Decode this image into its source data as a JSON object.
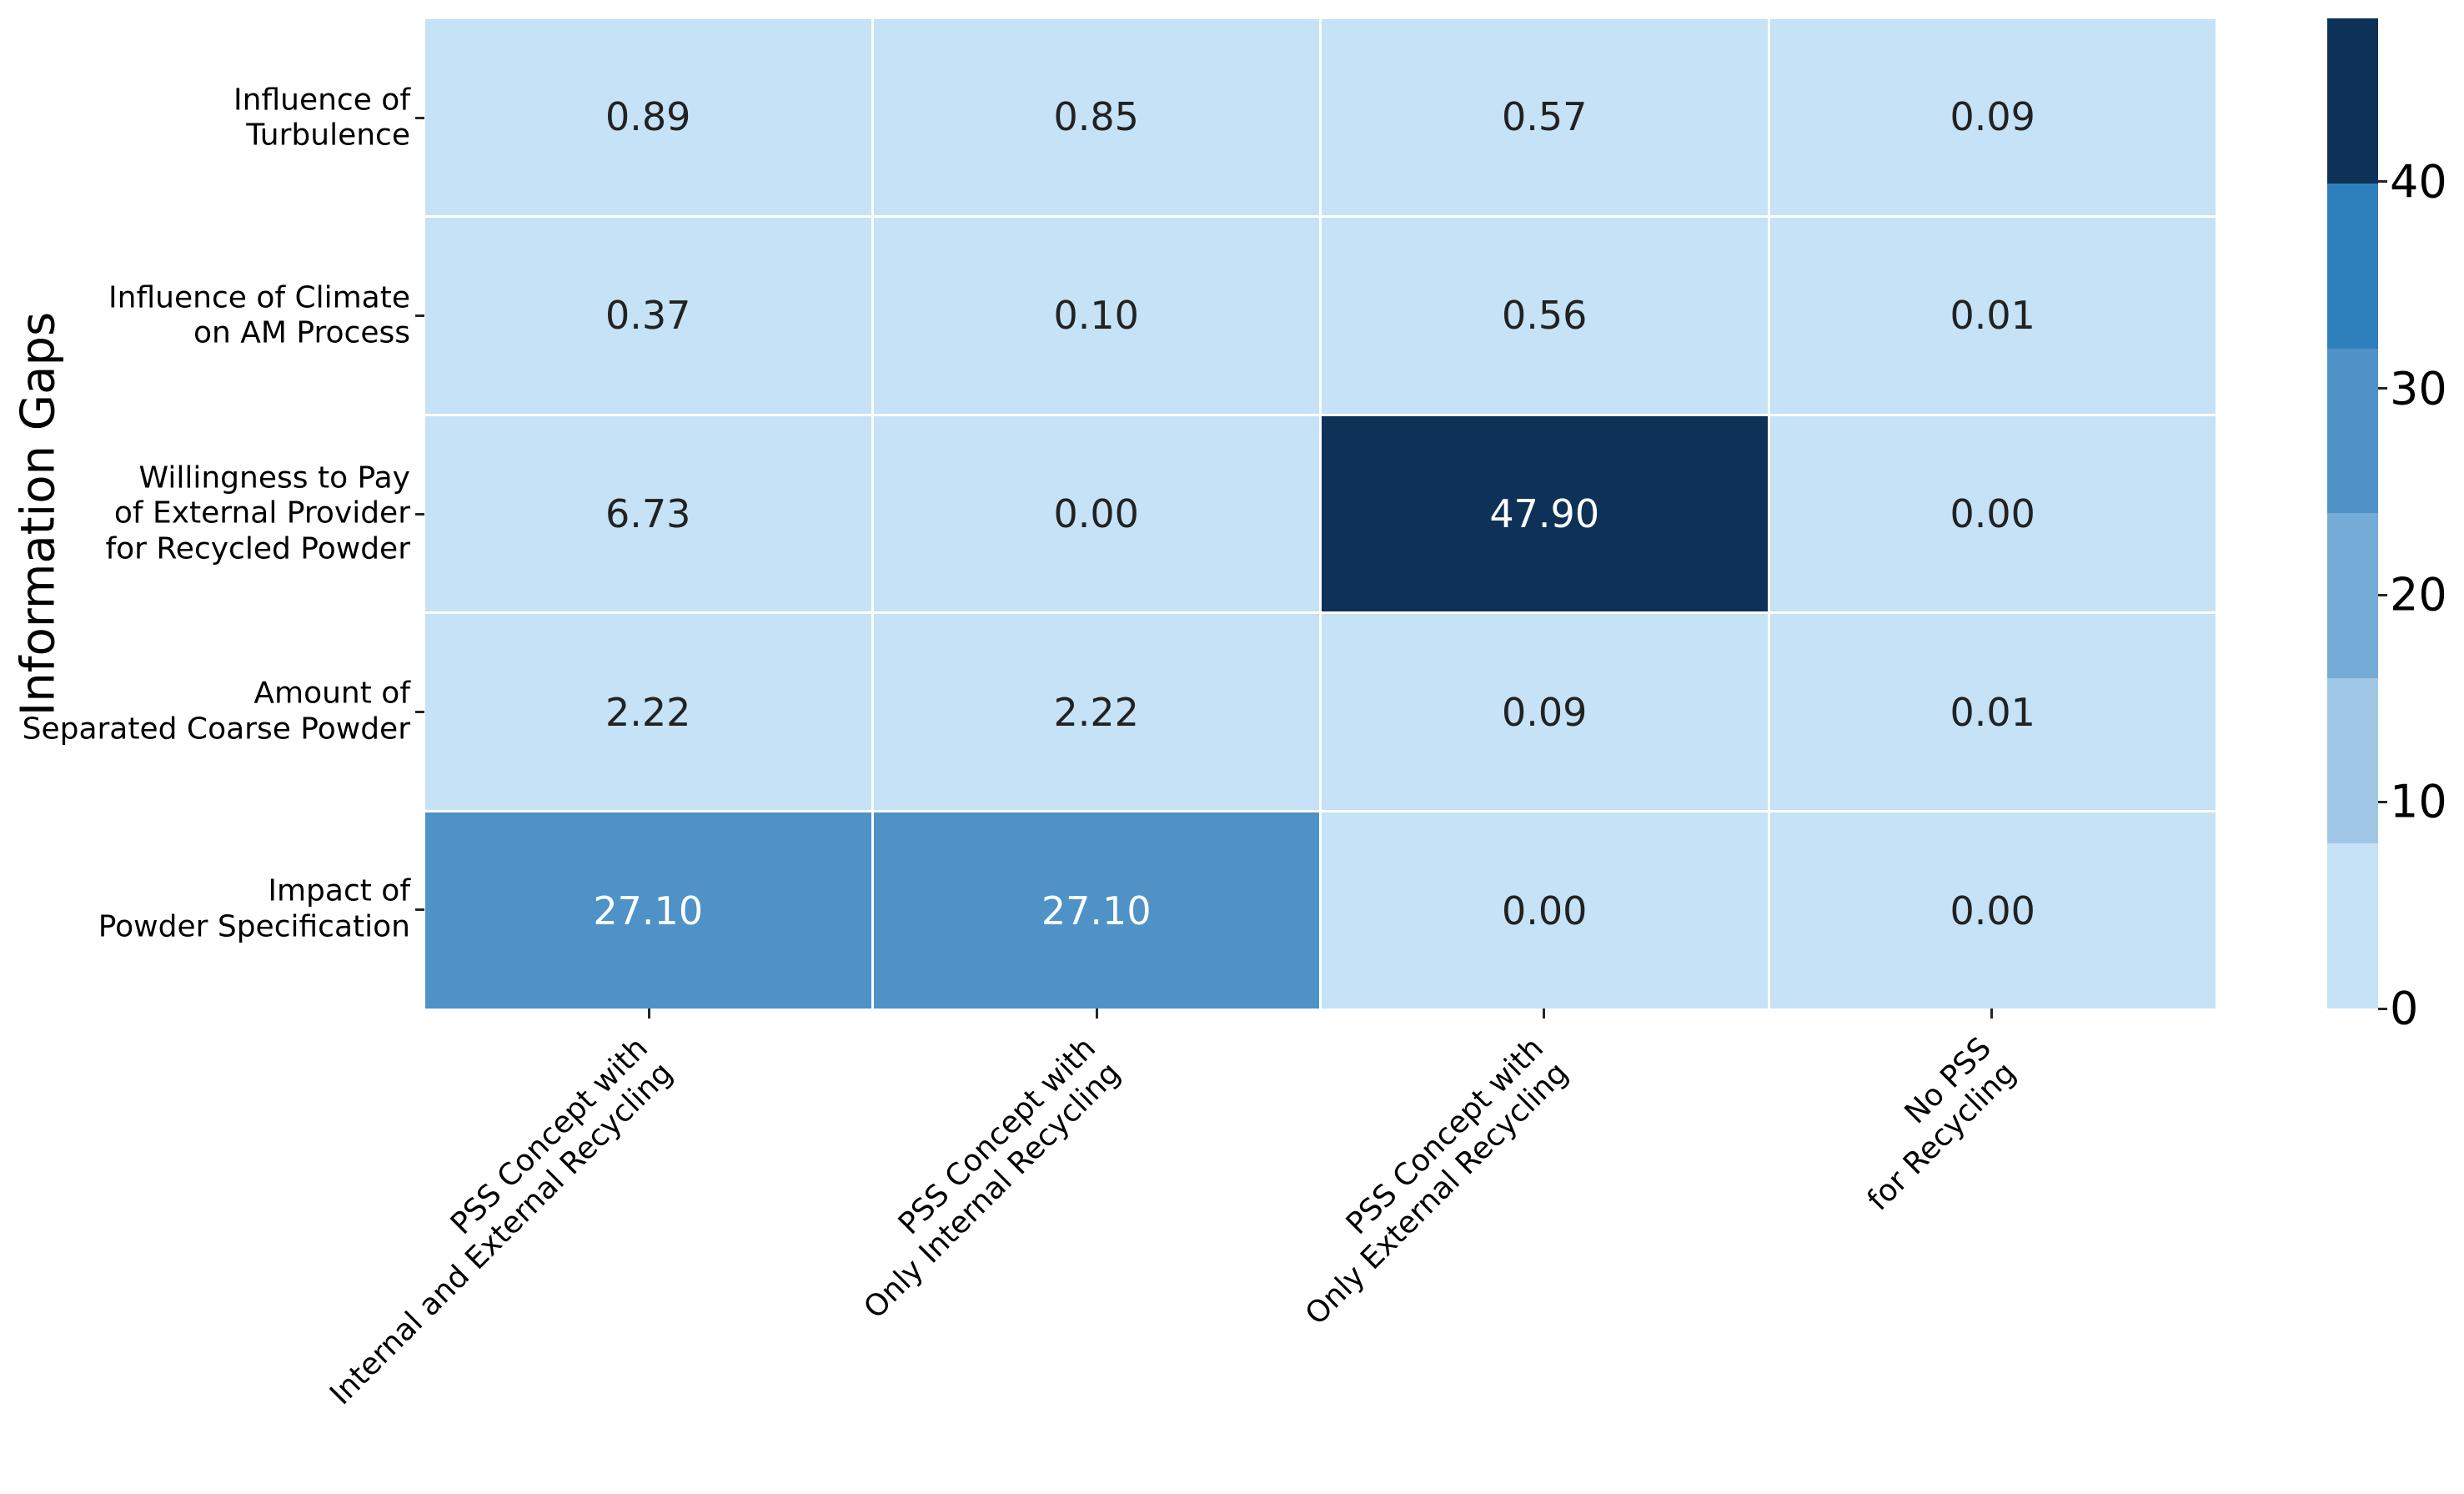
{
  "figure": {
    "background": "#ffffff"
  },
  "chart_data": {
    "type": "heatmap",
    "title": "",
    "xlabel": "",
    "ylabel": "Information Gaps",
    "legend_position": "right-colorbar",
    "grid_line_color": "#ffffff",
    "rows": [
      {
        "label_lines": [
          "Influence of",
          "Turbulence"
        ]
      },
      {
        "label_lines": [
          "Influence of Climate",
          "on AM Process"
        ]
      },
      {
        "label_lines": [
          "Willingness to Pay",
          "of External Provider",
          "for Recycled Powder"
        ]
      },
      {
        "label_lines": [
          "Amount of",
          "Separated Coarse Powder"
        ]
      },
      {
        "label_lines": [
          "Impact of",
          "Powder Specification"
        ]
      }
    ],
    "columns": [
      {
        "label_lines": [
          "PSS Concept with",
          "Internal and External Recycling"
        ]
      },
      {
        "label_lines": [
          "PSS Concept with",
          "Only Internal Recycling"
        ]
      },
      {
        "label_lines": [
          "PSS Concept with",
          "Only External Recycling"
        ]
      },
      {
        "label_lines": [
          "No PSS",
          "for Recycling"
        ]
      }
    ],
    "values": [
      [
        0.89,
        0.85,
        0.57,
        0.09
      ],
      [
        0.37,
        0.1,
        0.56,
        0.01
      ],
      [
        6.73,
        0.0,
        47.9,
        0.0
      ],
      [
        2.22,
        2.22,
        0.09,
        0.01
      ],
      [
        27.1,
        27.1,
        0.0,
        0.0
      ]
    ],
    "cell_labels": [
      [
        "0.89",
        "0.85",
        "0.57",
        "0.09"
      ],
      [
        "0.37",
        "0.10",
        "0.56",
        "0.01"
      ],
      [
        "6.73",
        "0.00",
        "47.90",
        "0.00"
      ],
      [
        "2.22",
        "2.22",
        "0.09",
        "0.01"
      ],
      [
        "27.10",
        "27.10",
        "0.00",
        "0.00"
      ]
    ],
    "annotation_colors": {
      "on_light": "#222222",
      "on_dark": "#ffffff"
    },
    "colorbar": {
      "vmin": 0,
      "vmax": 47.9,
      "n_segments": 6,
      "tick_values": [
        0,
        10,
        20,
        30,
        40
      ],
      "tick_labels": [
        "0",
        "10",
        "20",
        "30",
        "40"
      ],
      "palette_light_to_dark": [
        "#c5e2f6",
        "#a0c8e6",
        "#74abd7",
        "#4e92c8",
        "#2e80bd",
        "#0e3257"
      ]
    }
  }
}
